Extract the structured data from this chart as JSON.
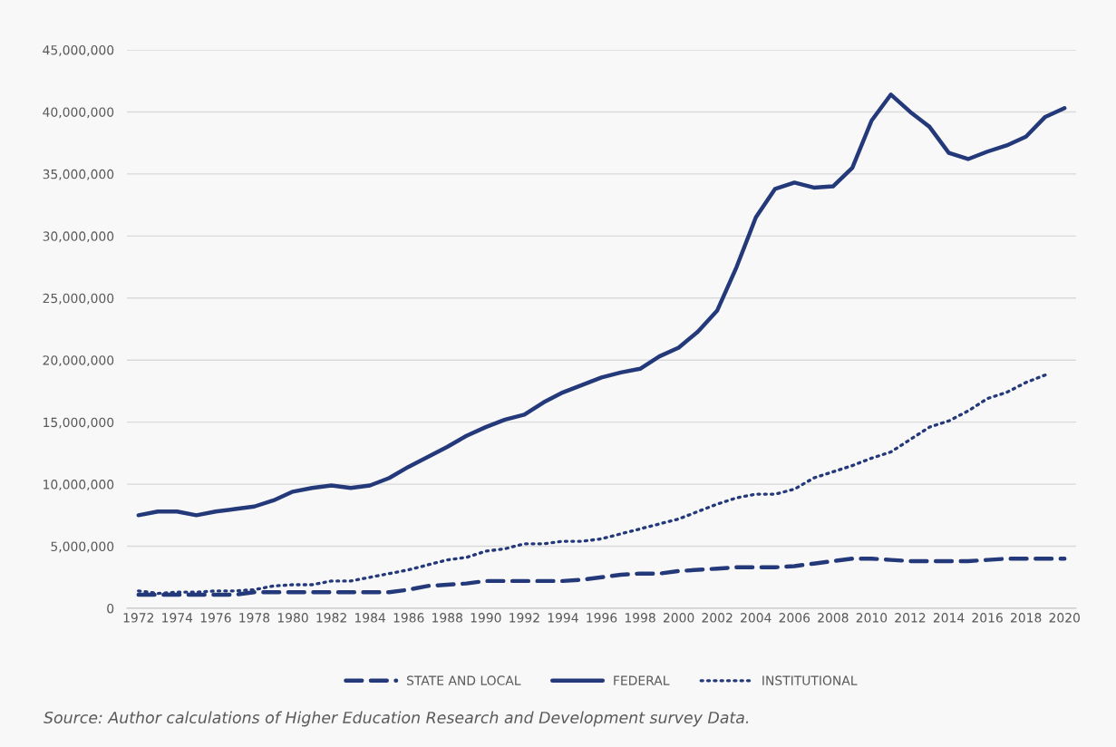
{
  "chart_data": {
    "type": "line",
    "x": [
      1972,
      1973,
      1974,
      1975,
      1976,
      1977,
      1978,
      1979,
      1980,
      1981,
      1982,
      1983,
      1984,
      1985,
      1986,
      1987,
      1988,
      1989,
      1990,
      1991,
      1992,
      1993,
      1994,
      1995,
      1996,
      1997,
      1998,
      1999,
      2000,
      2001,
      2002,
      2003,
      2004,
      2005,
      2006,
      2007,
      2008,
      2009,
      2010,
      2011,
      2012,
      2013,
      2014,
      2015,
      2016,
      2017,
      2018,
      2019,
      2020
    ],
    "series": [
      {
        "name": "STATE AND LOCAL",
        "color": "#24397a",
        "line_style": "dashed",
        "values": [
          1100000,
          1100000,
          1100000,
          1100000,
          1100000,
          1100000,
          1300000,
          1300000,
          1300000,
          1300000,
          1300000,
          1300000,
          1300000,
          1300000,
          1500000,
          1800000,
          1900000,
          2000000,
          2200000,
          2200000,
          2200000,
          2200000,
          2200000,
          2300000,
          2500000,
          2700000,
          2800000,
          2800000,
          3000000,
          3100000,
          3200000,
          3300000,
          3300000,
          3300000,
          3400000,
          3600000,
          3800000,
          4000000,
          4000000,
          3900000,
          3800000,
          3800000,
          3800000,
          3800000,
          3900000,
          4000000,
          4000000,
          4000000,
          4000000
        ]
      },
      {
        "name": "FEDERAL",
        "color": "#24397a",
        "line_style": "solid",
        "values": [
          7500000,
          7800000,
          7800000,
          7500000,
          7800000,
          8000000,
          8200000,
          8700000,
          9400000,
          9700000,
          9900000,
          9700000,
          9900000,
          10500000,
          11400000,
          12200000,
          13000000,
          13900000,
          14600000,
          15200000,
          15600000,
          16600000,
          17400000,
          18000000,
          18600000,
          19000000,
          19300000,
          20300000,
          21000000,
          22300000,
          24000000,
          27500000,
          31500000,
          33800000,
          34300000,
          33900000,
          34000000,
          35500000,
          39300000,
          41400000,
          40000000,
          38800000,
          36700000,
          36200000,
          36800000,
          37300000,
          38000000,
          39600000,
          40300000
        ]
      },
      {
        "name": "INSTITUTIONAL",
        "color": "#24397a",
        "line_style": "dotted",
        "values": [
          1400000,
          1200000,
          1300000,
          1300000,
          1400000,
          1400000,
          1500000,
          1800000,
          1900000,
          1900000,
          2200000,
          2200000,
          2500000,
          2800000,
          3100000,
          3500000,
          3900000,
          4100000,
          4600000,
          4800000,
          5200000,
          5200000,
          5400000,
          5400000,
          5600000,
          6000000,
          6400000,
          6800000,
          7200000,
          7800000,
          8400000,
          8900000,
          9200000,
          9200000,
          9600000,
          10500000,
          11000000,
          11500000,
          12100000,
          12600000,
          13600000,
          14600000,
          15100000,
          15900000,
          16900000,
          17400000,
          18200000,
          18800000,
          null
        ]
      }
    ],
    "xlim": [
      1971.4,
      2020.6
    ],
    "xticks": [
      1972,
      1974,
      1976,
      1978,
      1980,
      1982,
      1984,
      1986,
      1988,
      1990,
      1992,
      1994,
      1996,
      1998,
      2000,
      2002,
      2004,
      2006,
      2008,
      2010,
      2012,
      2014,
      2016,
      2018,
      2020
    ],
    "ylim": [
      0,
      45000000
    ],
    "yticks": [
      {
        "value": 0,
        "label": "0"
      },
      {
        "value": 5000000,
        "label": "5,000,000"
      },
      {
        "value": 10000000,
        "label": "10,000,000"
      },
      {
        "value": 15000000,
        "label": "15,000,000"
      },
      {
        "value": 20000000,
        "label": "20,000,000"
      },
      {
        "value": 25000000,
        "label": "25,000,000"
      },
      {
        "value": 30000000,
        "label": "30,000,000"
      },
      {
        "value": 35000000,
        "label": "35,000,000"
      },
      {
        "value": 40000000,
        "label": "40,000,000"
      },
      {
        "value": 45000000,
        "label": "45,000,000"
      }
    ],
    "grid": "y",
    "legend": "bottom",
    "annotations": [
      "Source: Author calculations of Higher Education Research and Development survey Data."
    ]
  }
}
